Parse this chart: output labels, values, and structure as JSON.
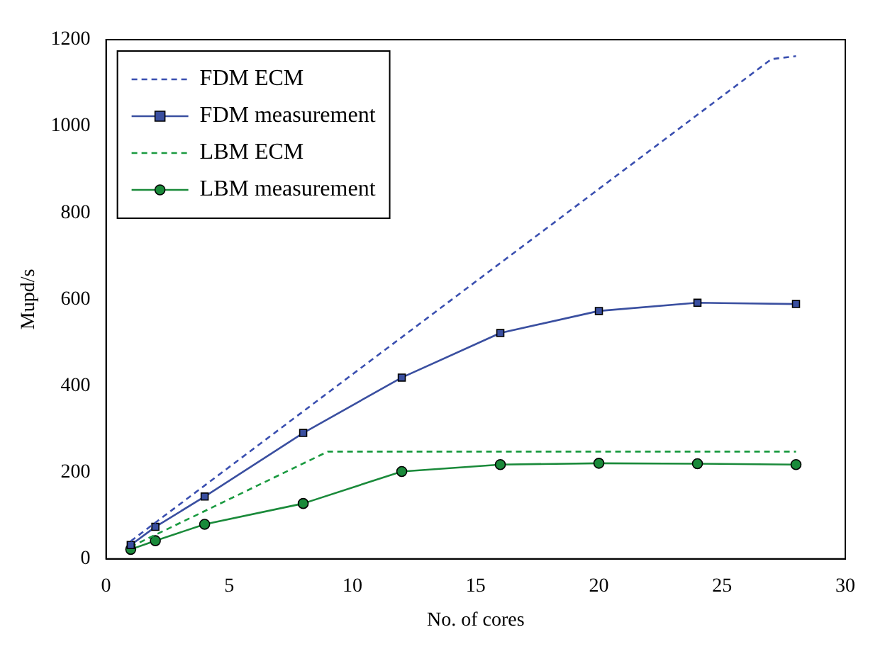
{
  "chart_data": {
    "type": "line",
    "xlabel": "No. of cores",
    "ylabel": "Mupd/s",
    "xlim": [
      0,
      30
    ],
    "xticks": [
      0,
      5,
      10,
      15,
      20,
      25,
      30
    ],
    "ylim": [
      0,
      1200
    ],
    "yticks": [
      0,
      200,
      400,
      600,
      800,
      1000,
      1200
    ],
    "grid": false,
    "legend": "top left",
    "series": [
      {
        "name": "FDM ECM",
        "color": "#3a4fb0",
        "line_style": "dashed",
        "marker": "none",
        "x": [
          1,
          27,
          28
        ],
        "values": [
          41,
          1155,
          1162
        ]
      },
      {
        "name": "FDM measurement",
        "color": "#3a4fa0",
        "line_style": "solid",
        "marker": "square",
        "x": [
          1,
          2,
          4,
          8,
          12,
          16,
          20,
          24,
          28
        ],
        "values": [
          32,
          74,
          144,
          291,
          419,
          522,
          573,
          592,
          589
        ]
      },
      {
        "name": "LBM ECM",
        "color": "#1a9a40",
        "line_style": "dashed",
        "marker": "none",
        "x": [
          1,
          9,
          28
        ],
        "values": [
          28,
          248,
          248
        ]
      },
      {
        "name": "LBM measurement",
        "color": "#1a8a3a",
        "line_style": "solid",
        "marker": "circle",
        "x": [
          1,
          2,
          4,
          8,
          12,
          16,
          20,
          24,
          28
        ],
        "values": [
          22,
          42,
          80,
          128,
          202,
          218,
          221,
          220,
          218
        ]
      }
    ]
  }
}
